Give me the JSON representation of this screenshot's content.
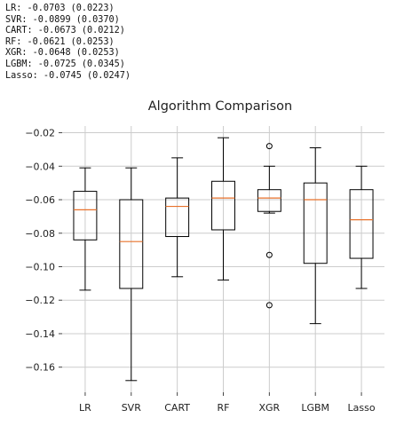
{
  "console_lines": [
    "LR: -0.0703 (0.0223)",
    "SVR: -0.0899 (0.0370)",
    "CART: -0.0673 (0.0212)",
    "RF: -0.0621 (0.0253)",
    "XGR: -0.0648 (0.0253)",
    "LGBM: -0.0725 (0.0345)",
    "Lasso: -0.0745 (0.0247)"
  ],
  "chart_data": {
    "type": "box",
    "title": "Algorithm Comparison",
    "xlabel": "",
    "ylabel": "",
    "ylim": [
      -0.175,
      -0.016
    ],
    "yticks": [
      -0.02,
      -0.04,
      -0.06,
      -0.08,
      -0.1,
      -0.12,
      -0.14,
      -0.16
    ],
    "ytick_labels": [
      "−0.02",
      "−0.04",
      "−0.06",
      "−0.08",
      "−0.10",
      "−0.12",
      "−0.14",
      "−0.16"
    ],
    "grid": true,
    "categories": [
      "LR",
      "SVR",
      "CART",
      "RF",
      "XGR",
      "LGBM",
      "Lasso"
    ],
    "boxes": [
      {
        "name": "LR",
        "whislo": -0.114,
        "q1": -0.084,
        "med": -0.066,
        "q3": -0.055,
        "whishi": -0.041,
        "fliers": []
      },
      {
        "name": "SVR",
        "whislo": -0.168,
        "q1": -0.113,
        "med": -0.085,
        "q3": -0.06,
        "whishi": -0.041,
        "fliers": []
      },
      {
        "name": "CART",
        "whislo": -0.106,
        "q1": -0.082,
        "med": -0.064,
        "q3": -0.059,
        "whishi": -0.035,
        "fliers": []
      },
      {
        "name": "RF",
        "whislo": -0.108,
        "q1": -0.078,
        "med": -0.059,
        "q3": -0.049,
        "whishi": -0.023,
        "fliers": []
      },
      {
        "name": "XGR",
        "whislo": -0.068,
        "q1": -0.067,
        "med": -0.059,
        "q3": -0.054,
        "whishi": -0.04,
        "fliers": [
          -0.028,
          -0.093,
          -0.123
        ]
      },
      {
        "name": "LGBM",
        "whislo": -0.134,
        "q1": -0.098,
        "med": -0.06,
        "q3": -0.05,
        "whishi": -0.029,
        "fliers": []
      },
      {
        "name": "Lasso",
        "whislo": -0.113,
        "q1": -0.095,
        "med": -0.072,
        "q3": -0.054,
        "whishi": -0.04,
        "fliers": []
      }
    ],
    "colors": {
      "box": "#000000",
      "median": "#e8722b",
      "grid": "#cccccc",
      "background": "#ffffff"
    }
  }
}
